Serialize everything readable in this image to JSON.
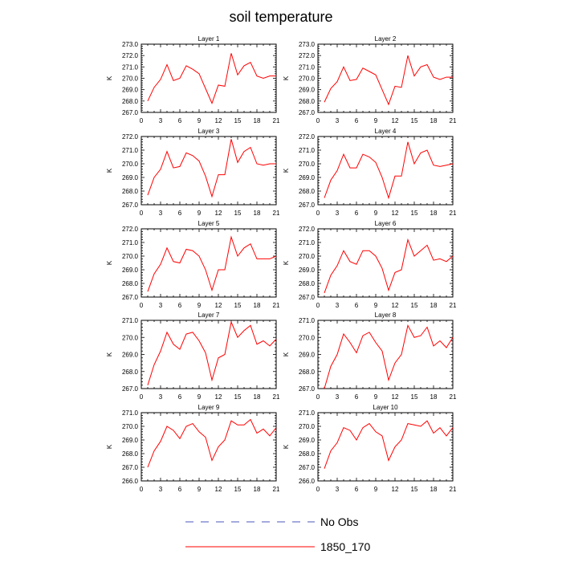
{
  "title": "soil temperature",
  "y_unit": "K",
  "x_ticks": [
    0,
    3,
    6,
    9,
    12,
    15,
    18,
    21
  ],
  "legend": {
    "obs_label": "No Obs",
    "model_label": "1850_170",
    "obs_color": "#4a56b8",
    "model_color": "#ff0000"
  },
  "chart_data": [
    {
      "type": "line",
      "title": "Layer 1",
      "ylabel": "K",
      "xlim": [
        0,
        21
      ],
      "ylim": [
        267.0,
        273.0
      ],
      "yticks": [
        "267.0",
        "268.0",
        "269.0",
        "270.0",
        "271.0",
        "272.0",
        "273.0"
      ],
      "x": [
        1,
        2,
        3,
        4,
        5,
        6,
        7,
        8,
        9,
        10,
        11,
        12,
        13,
        14,
        15,
        16,
        17,
        18,
        19,
        20,
        21
      ],
      "series": [
        {
          "color": "#ff0000",
          "values": [
            268.0,
            269.2,
            269.9,
            271.2,
            269.8,
            270.0,
            271.1,
            270.8,
            270.4,
            269.1,
            267.8,
            269.4,
            269.3,
            272.2,
            270.3,
            271.1,
            271.4,
            270.2,
            270.0,
            270.2,
            270.2
          ]
        }
      ]
    },
    {
      "type": "line",
      "title": "Layer 2",
      "ylabel": "K",
      "xlim": [
        0,
        21
      ],
      "ylim": [
        267.0,
        273.0
      ],
      "yticks": [
        "267.0",
        "268.0",
        "269.0",
        "270.0",
        "271.0",
        "272.0",
        "273.0"
      ],
      "x": [
        1,
        2,
        3,
        4,
        5,
        6,
        7,
        8,
        9,
        10,
        11,
        12,
        13,
        14,
        15,
        16,
        17,
        18,
        19,
        20,
        21
      ],
      "series": [
        {
          "color": "#ff0000",
          "values": [
            267.9,
            269.1,
            269.7,
            271.0,
            269.8,
            269.9,
            270.9,
            270.6,
            270.3,
            269.0,
            267.7,
            269.3,
            269.2,
            272.0,
            270.2,
            271.0,
            271.2,
            270.1,
            269.9,
            270.1,
            270.1
          ]
        }
      ]
    },
    {
      "type": "line",
      "title": "Layer 3",
      "ylabel": "K",
      "xlim": [
        0,
        21
      ],
      "ylim": [
        267.0,
        272.0
      ],
      "yticks": [
        "267.0",
        "268.0",
        "269.0",
        "270.0",
        "271.0",
        "272.0"
      ],
      "x": [
        1,
        2,
        3,
        4,
        5,
        6,
        7,
        8,
        9,
        10,
        11,
        12,
        13,
        14,
        15,
        16,
        17,
        18,
        19,
        20,
        21
      ],
      "series": [
        {
          "color": "#ff0000",
          "values": [
            267.7,
            269.0,
            269.6,
            270.9,
            269.7,
            269.8,
            270.8,
            270.6,
            270.2,
            269.1,
            267.6,
            269.2,
            269.2,
            271.8,
            270.1,
            270.9,
            271.2,
            270.0,
            269.9,
            270.0,
            270.0
          ]
        }
      ]
    },
    {
      "type": "line",
      "title": "Layer 4",
      "ylabel": "K",
      "xlim": [
        0,
        21
      ],
      "ylim": [
        267.0,
        272.0
      ],
      "yticks": [
        "267.0",
        "268.0",
        "269.0",
        "270.0",
        "271.0",
        "272.0"
      ],
      "x": [
        1,
        2,
        3,
        4,
        5,
        6,
        7,
        8,
        9,
        10,
        11,
        12,
        13,
        14,
        15,
        16,
        17,
        18,
        19,
        20,
        21
      ],
      "series": [
        {
          "color": "#ff0000",
          "values": [
            267.5,
            268.8,
            269.5,
            270.7,
            269.7,
            269.7,
            270.7,
            270.5,
            270.1,
            269.0,
            267.5,
            269.1,
            269.1,
            271.6,
            270.0,
            270.8,
            271.0,
            269.9,
            269.8,
            269.9,
            270.0
          ]
        }
      ]
    },
    {
      "type": "line",
      "title": "Layer 5",
      "ylabel": "K",
      "xlim": [
        0,
        21
      ],
      "ylim": [
        267.0,
        272.0
      ],
      "yticks": [
        "267.0",
        "268.0",
        "269.0",
        "270.0",
        "271.0",
        "272.0"
      ],
      "x": [
        1,
        2,
        3,
        4,
        5,
        6,
        7,
        8,
        9,
        10,
        11,
        12,
        13,
        14,
        15,
        16,
        17,
        18,
        19,
        20,
        21
      ],
      "series": [
        {
          "color": "#ff0000",
          "values": [
            267.4,
            268.7,
            269.4,
            270.6,
            269.6,
            269.5,
            270.5,
            270.4,
            270.0,
            269.0,
            267.5,
            269.0,
            269.0,
            271.4,
            270.0,
            270.6,
            270.9,
            269.8,
            269.8,
            269.8,
            270.0
          ]
        }
      ]
    },
    {
      "type": "line",
      "title": "Layer 6",
      "ylabel": "K",
      "xlim": [
        0,
        21
      ],
      "ylim": [
        267.0,
        272.0
      ],
      "yticks": [
        "267.0",
        "268.0",
        "269.0",
        "270.0",
        "271.0",
        "272.0"
      ],
      "x": [
        1,
        2,
        3,
        4,
        5,
        6,
        7,
        8,
        9,
        10,
        11,
        12,
        13,
        14,
        15,
        16,
        17,
        18,
        19,
        20,
        21
      ],
      "series": [
        {
          "color": "#ff0000",
          "values": [
            267.3,
            268.6,
            269.3,
            270.4,
            269.6,
            269.4,
            270.4,
            270.4,
            270.0,
            269.1,
            267.5,
            268.8,
            269.0,
            271.2,
            270.0,
            270.4,
            270.8,
            269.7,
            269.8,
            269.6,
            270.0
          ]
        }
      ]
    },
    {
      "type": "line",
      "title": "Layer 7",
      "ylabel": "K",
      "xlim": [
        0,
        21
      ],
      "ylim": [
        267.0,
        271.0
      ],
      "yticks": [
        "267.0",
        "268.0",
        "269.0",
        "270.0",
        "271.0"
      ],
      "x": [
        1,
        2,
        3,
        4,
        5,
        6,
        7,
        8,
        9,
        10,
        11,
        12,
        13,
        14,
        15,
        16,
        17,
        18,
        19,
        20,
        21
      ],
      "series": [
        {
          "color": "#ff0000",
          "values": [
            267.2,
            268.4,
            269.2,
            270.3,
            269.6,
            269.3,
            270.2,
            270.3,
            269.8,
            269.1,
            267.5,
            268.8,
            269.0,
            270.9,
            270.0,
            270.4,
            270.7,
            269.6,
            269.8,
            269.5,
            269.9
          ]
        }
      ]
    },
    {
      "type": "line",
      "title": "Layer 8",
      "ylabel": "K",
      "xlim": [
        0,
        21
      ],
      "ylim": [
        267.0,
        271.0
      ],
      "yticks": [
        "267.0",
        "268.0",
        "269.0",
        "270.0",
        "271.0"
      ],
      "x": [
        1,
        2,
        3,
        4,
        5,
        6,
        7,
        8,
        9,
        10,
        11,
        12,
        13,
        14,
        15,
        16,
        17,
        18,
        19,
        20,
        21
      ],
      "series": [
        {
          "color": "#ff0000",
          "values": [
            267.0,
            268.3,
            269.0,
            270.2,
            269.7,
            269.1,
            270.1,
            270.3,
            269.7,
            269.2,
            267.5,
            268.5,
            269.0,
            270.7,
            270.0,
            270.1,
            270.6,
            269.5,
            269.8,
            269.4,
            270.0
          ]
        }
      ]
    },
    {
      "type": "line",
      "title": "Layer 9",
      "ylabel": "K",
      "xlim": [
        0,
        21
      ],
      "ylim": [
        266.0,
        271.0
      ],
      "yticks": [
        "266.0",
        "267.0",
        "268.0",
        "269.0",
        "270.0",
        "271.0"
      ],
      "x": [
        1,
        2,
        3,
        4,
        5,
        6,
        7,
        8,
        9,
        10,
        11,
        12,
        13,
        14,
        15,
        16,
        17,
        18,
        19,
        20,
        21
      ],
      "series": [
        {
          "color": "#ff0000",
          "values": [
            267.0,
            268.2,
            268.9,
            270.0,
            269.7,
            269.1,
            270.0,
            270.2,
            269.6,
            269.2,
            267.5,
            268.5,
            269.0,
            270.4,
            270.1,
            270.1,
            270.5,
            269.5,
            269.8,
            269.3,
            269.9
          ]
        }
      ]
    },
    {
      "type": "line",
      "title": "Layer 10",
      "ylabel": "K",
      "xlim": [
        0,
        21
      ],
      "ylim": [
        266.0,
        271.0
      ],
      "yticks": [
        "266.0",
        "267.0",
        "268.0",
        "269.0",
        "270.0",
        "271.0"
      ],
      "x": [
        1,
        2,
        3,
        4,
        5,
        6,
        7,
        8,
        9,
        10,
        11,
        12,
        13,
        14,
        15,
        16,
        17,
        18,
        19,
        20,
        21
      ],
      "series": [
        {
          "color": "#ff0000",
          "values": [
            266.9,
            268.2,
            268.8,
            269.9,
            269.7,
            269.0,
            269.9,
            270.2,
            269.6,
            269.3,
            267.5,
            268.5,
            269.0,
            270.2,
            270.1,
            270.0,
            270.4,
            269.5,
            269.9,
            269.3,
            269.9
          ]
        }
      ]
    }
  ]
}
